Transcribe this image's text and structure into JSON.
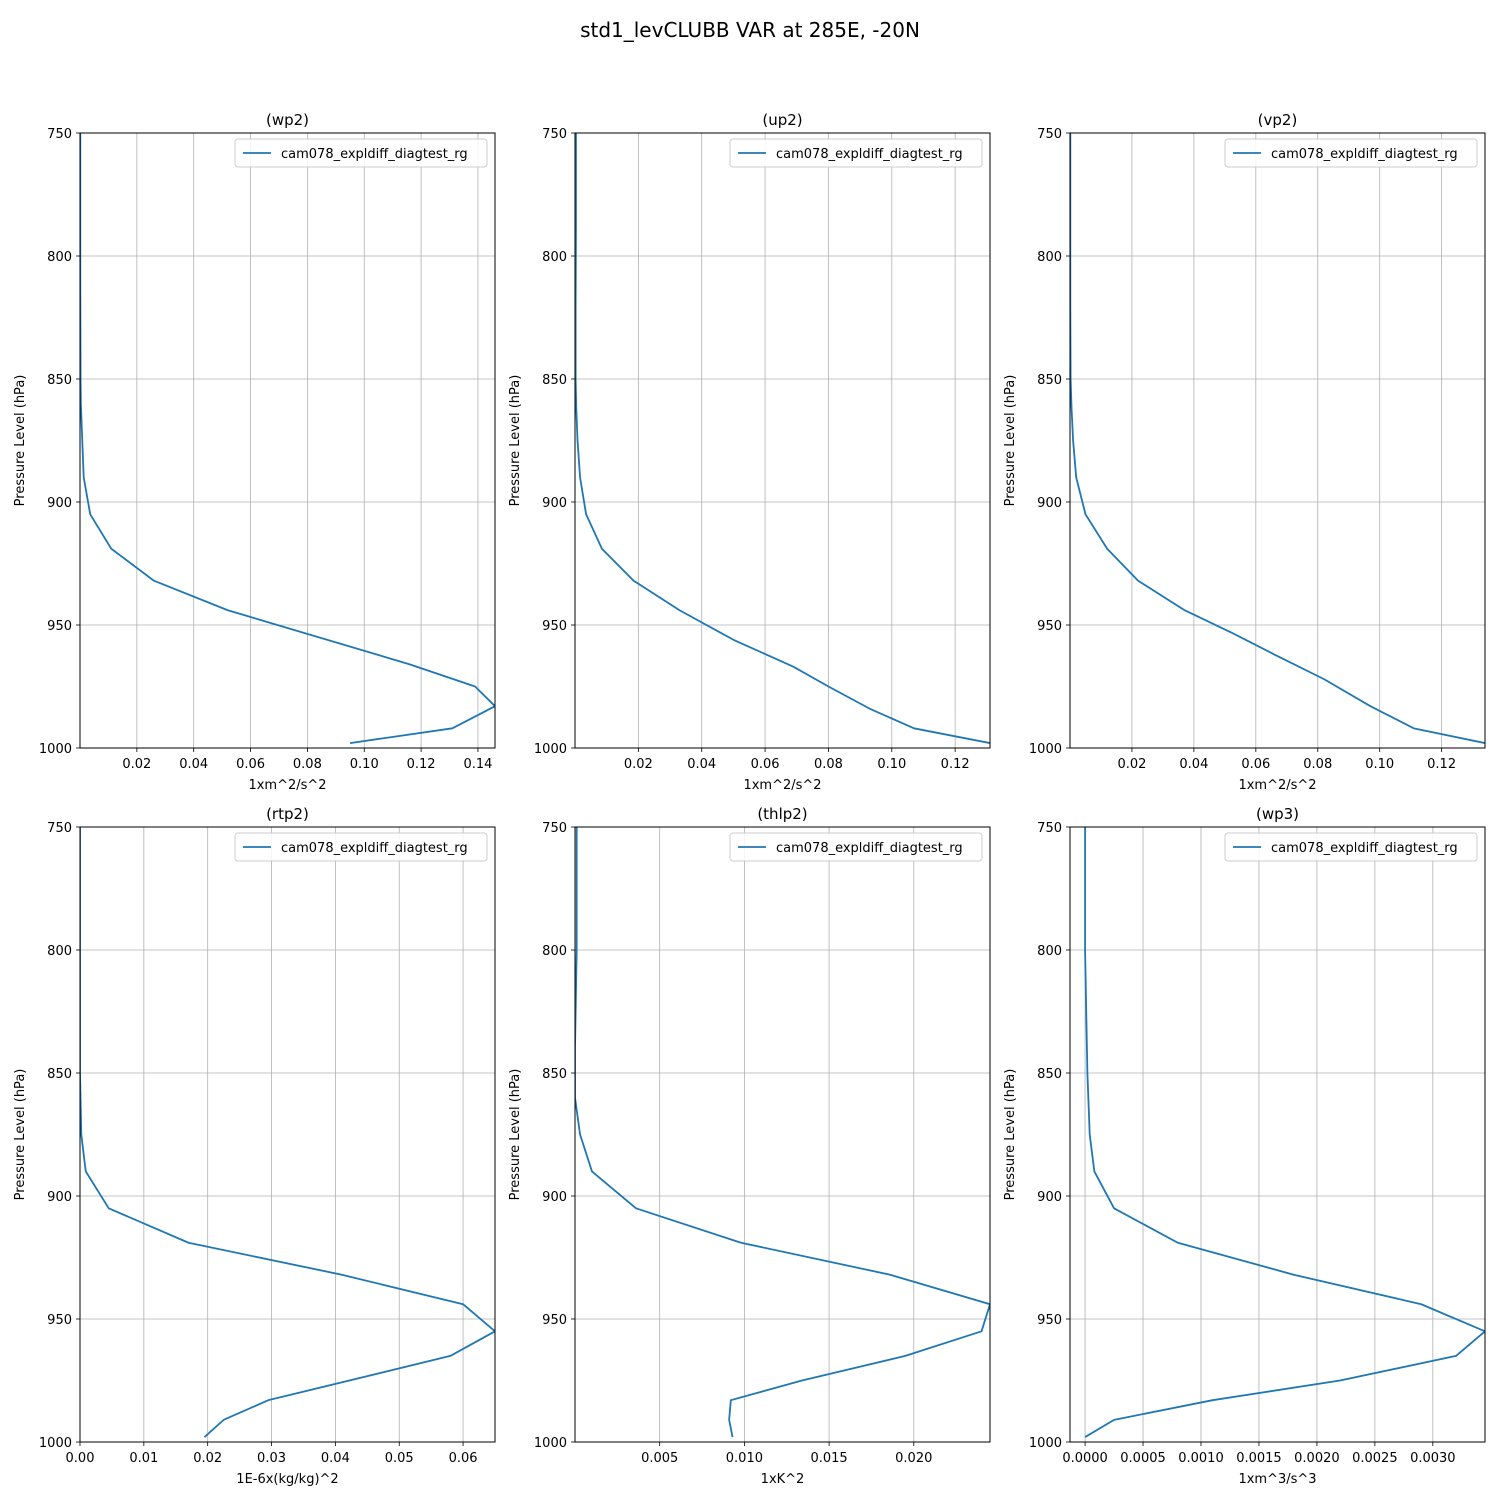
{
  "suptitle": "std1_levCLUBB VAR at 285E, -20N",
  "colors": {
    "series": "#1f77b4",
    "grid": "#b0b0b0",
    "axis": "#000000"
  },
  "chart_data": [
    {
      "type": "line",
      "title": "(wp2)",
      "xlabel": "1xm^2/s^2",
      "ylabel": "Pressure Level (hPa)",
      "xlim": [
        0,
        0.146
      ],
      "ylim": [
        1000,
        750
      ],
      "xticks": [
        0.02,
        0.04,
        0.06,
        0.08,
        0.1,
        0.12,
        0.14
      ],
      "xtick_labels": [
        "0.02",
        "0.04",
        "0.06",
        "0.08",
        "0.10",
        "0.12",
        "0.14"
      ],
      "yticks": [
        750,
        800,
        850,
        900,
        950,
        1000
      ],
      "ytick_labels": [
        "750",
        "800",
        "850",
        "900",
        "950",
        "1000"
      ],
      "grid": true,
      "legend_position": "top-right",
      "series": [
        {
          "name": "cam078_expldiff_diagtest_rg",
          "x": [
            0.0001,
            0.0001,
            0.0001,
            0.0002,
            0.0003,
            0.0008,
            0.0013,
            0.0036,
            0.011,
            0.026,
            0.052,
            0.116,
            0.139,
            0.146,
            0.131,
            0.095
          ],
          "y": [
            750,
            780,
            810,
            850,
            860,
            875,
            890,
            905,
            919,
            932,
            944,
            966,
            975,
            983,
            992,
            998
          ]
        }
      ]
    },
    {
      "type": "line",
      "title": "(up2)",
      "xlabel": "1xm^2/s^2",
      "ylabel": "Pressure Level (hPa)",
      "xlim": [
        0,
        0.131
      ],
      "ylim": [
        1000,
        750
      ],
      "xticks": [
        0.02,
        0.04,
        0.06,
        0.08,
        0.1,
        0.12
      ],
      "xtick_labels": [
        "0.02",
        "0.04",
        "0.06",
        "0.08",
        "0.10",
        "0.12"
      ],
      "yticks": [
        750,
        800,
        850,
        900,
        950,
        1000
      ],
      "ytick_labels": [
        "750",
        "800",
        "850",
        "900",
        "950",
        "1000"
      ],
      "grid": true,
      "legend_position": "top-right",
      "series": [
        {
          "name": "cam078_expldiff_diagtest_rg",
          "x": [
            0.0003,
            0.0003,
            0.0002,
            0.0002,
            0.0004,
            0.0008,
            0.0016,
            0.0035,
            0.0085,
            0.0185,
            0.033,
            0.05,
            0.069,
            0.08,
            0.093,
            0.107,
            0.131
          ],
          "y": [
            750,
            790,
            820,
            850,
            862,
            875,
            890,
            905,
            919,
            932,
            944,
            956,
            967,
            975,
            984,
            992,
            998
          ]
        }
      ]
    },
    {
      "type": "line",
      "title": "(vp2)",
      "xlabel": "1xm^2/s^2",
      "ylabel": "Pressure Level (hPa)",
      "xlim": [
        0,
        0.134
      ],
      "ylim": [
        1000,
        750
      ],
      "xticks": [
        0.02,
        0.04,
        0.06,
        0.08,
        0.1,
        0.12
      ],
      "xtick_labels": [
        "0.02",
        "0.04",
        "0.06",
        "0.08",
        "0.10",
        "0.12"
      ],
      "yticks": [
        750,
        800,
        850,
        900,
        950,
        1000
      ],
      "ytick_labels": [
        "750",
        "800",
        "850",
        "900",
        "950",
        "1000"
      ],
      "grid": true,
      "legend_position": "top-right",
      "series": [
        {
          "name": "cam078_expldiff_diagtest_rg",
          "x": [
            0.0001,
            0.0001,
            0.0001,
            0.0002,
            0.0005,
            0.001,
            0.002,
            0.005,
            0.012,
            0.022,
            0.037,
            0.052,
            0.066,
            0.082,
            0.097,
            0.111,
            0.134
          ],
          "y": [
            750,
            790,
            820,
            850,
            862,
            875,
            890,
            905,
            919,
            932,
            944,
            953,
            962,
            972,
            983,
            992,
            998
          ]
        }
      ]
    },
    {
      "type": "line",
      "title": "(rtp2)",
      "xlabel": "1E-6x(kg/kg)^2",
      "ylabel": "Pressure Level (hPa)",
      "xlim": [
        0,
        0.065
      ],
      "ylim": [
        1000,
        750
      ],
      "xticks": [
        0.0,
        0.01,
        0.02,
        0.03,
        0.04,
        0.05,
        0.06
      ],
      "xtick_labels": [
        "0.00",
        "0.01",
        "0.02",
        "0.03",
        "0.04",
        "0.05",
        "0.06"
      ],
      "yticks": [
        750,
        800,
        850,
        900,
        950,
        1000
      ],
      "ytick_labels": [
        "750",
        "800",
        "850",
        "900",
        "950",
        "1000"
      ],
      "grid": true,
      "legend_position": "top-right",
      "series": [
        {
          "name": "cam078_expldiff_diagtest_rg",
          "x": [
            0.0,
            0.0,
            0.0,
            0.0002,
            0.0009,
            0.0045,
            0.017,
            0.041,
            0.06,
            0.065,
            0.058,
            0.0295,
            0.0225,
            0.0195
          ],
          "y": [
            750,
            800,
            850,
            875,
            890,
            905,
            919,
            932,
            944,
            955,
            965,
            983,
            991,
            998
          ]
        }
      ]
    },
    {
      "type": "line",
      "title": "(thlp2)",
      "xlabel": "1xK^2",
      "ylabel": "Pressure Level (hPa)",
      "xlim": [
        0,
        0.0245
      ],
      "ylim": [
        1000,
        750
      ],
      "xticks": [
        0.005,
        0.01,
        0.015,
        0.02
      ],
      "xtick_labels": [
        "0.005",
        "0.010",
        "0.015",
        "0.020"
      ],
      "yticks": [
        750,
        800,
        850,
        900,
        950,
        1000
      ],
      "ytick_labels": [
        "750",
        "800",
        "850",
        "900",
        "950",
        "1000"
      ],
      "grid": true,
      "legend_position": "top-right",
      "series": [
        {
          "name": "cam078_expldiff_diagtest_rg",
          "x": [
            0.0001,
            0.0001,
            0.0,
            0.0,
            0.0003,
            0.001,
            0.0036,
            0.0098,
            0.0186,
            0.0245,
            0.024,
            0.0195,
            0.0134,
            0.0092,
            0.0091,
            0.0093
          ],
          "y": [
            750,
            800,
            840,
            860,
            875,
            890,
            905,
            919,
            932,
            944,
            955,
            965,
            975,
            983,
            991,
            998
          ]
        }
      ]
    },
    {
      "type": "line",
      "title": "(wp3)",
      "xlabel": "1xm^3/s^3",
      "ylabel": "Pressure Level (hPa)",
      "xlim": [
        -0.00013,
        0.00345
      ],
      "ylim": [
        1000,
        750
      ],
      "xticks": [
        0.0,
        0.0005,
        0.001,
        0.0015,
        0.002,
        0.0025,
        0.003
      ],
      "xtick_labels": [
        "0.0000",
        "0.0005",
        "0.0010",
        "0.0015",
        "0.0020",
        "0.0025",
        "0.0030"
      ],
      "yticks": [
        750,
        800,
        850,
        900,
        950,
        1000
      ],
      "ytick_labels": [
        "750",
        "800",
        "850",
        "900",
        "950",
        "1000"
      ],
      "grid": true,
      "legend_position": "top-right",
      "series": [
        {
          "name": "cam078_expldiff_diagtest_rg",
          "x": [
            0.0,
            0.0,
            2e-05,
            4e-05,
            8e-05,
            0.00025,
            0.0008,
            0.0018,
            0.0029,
            0.00345,
            0.0032,
            0.0022,
            0.0011,
            0.00025,
            0.0
          ],
          "y": [
            750,
            800,
            850,
            875,
            890,
            905,
            919,
            932,
            944,
            955,
            965,
            975,
            983,
            991,
            998
          ]
        }
      ]
    }
  ]
}
